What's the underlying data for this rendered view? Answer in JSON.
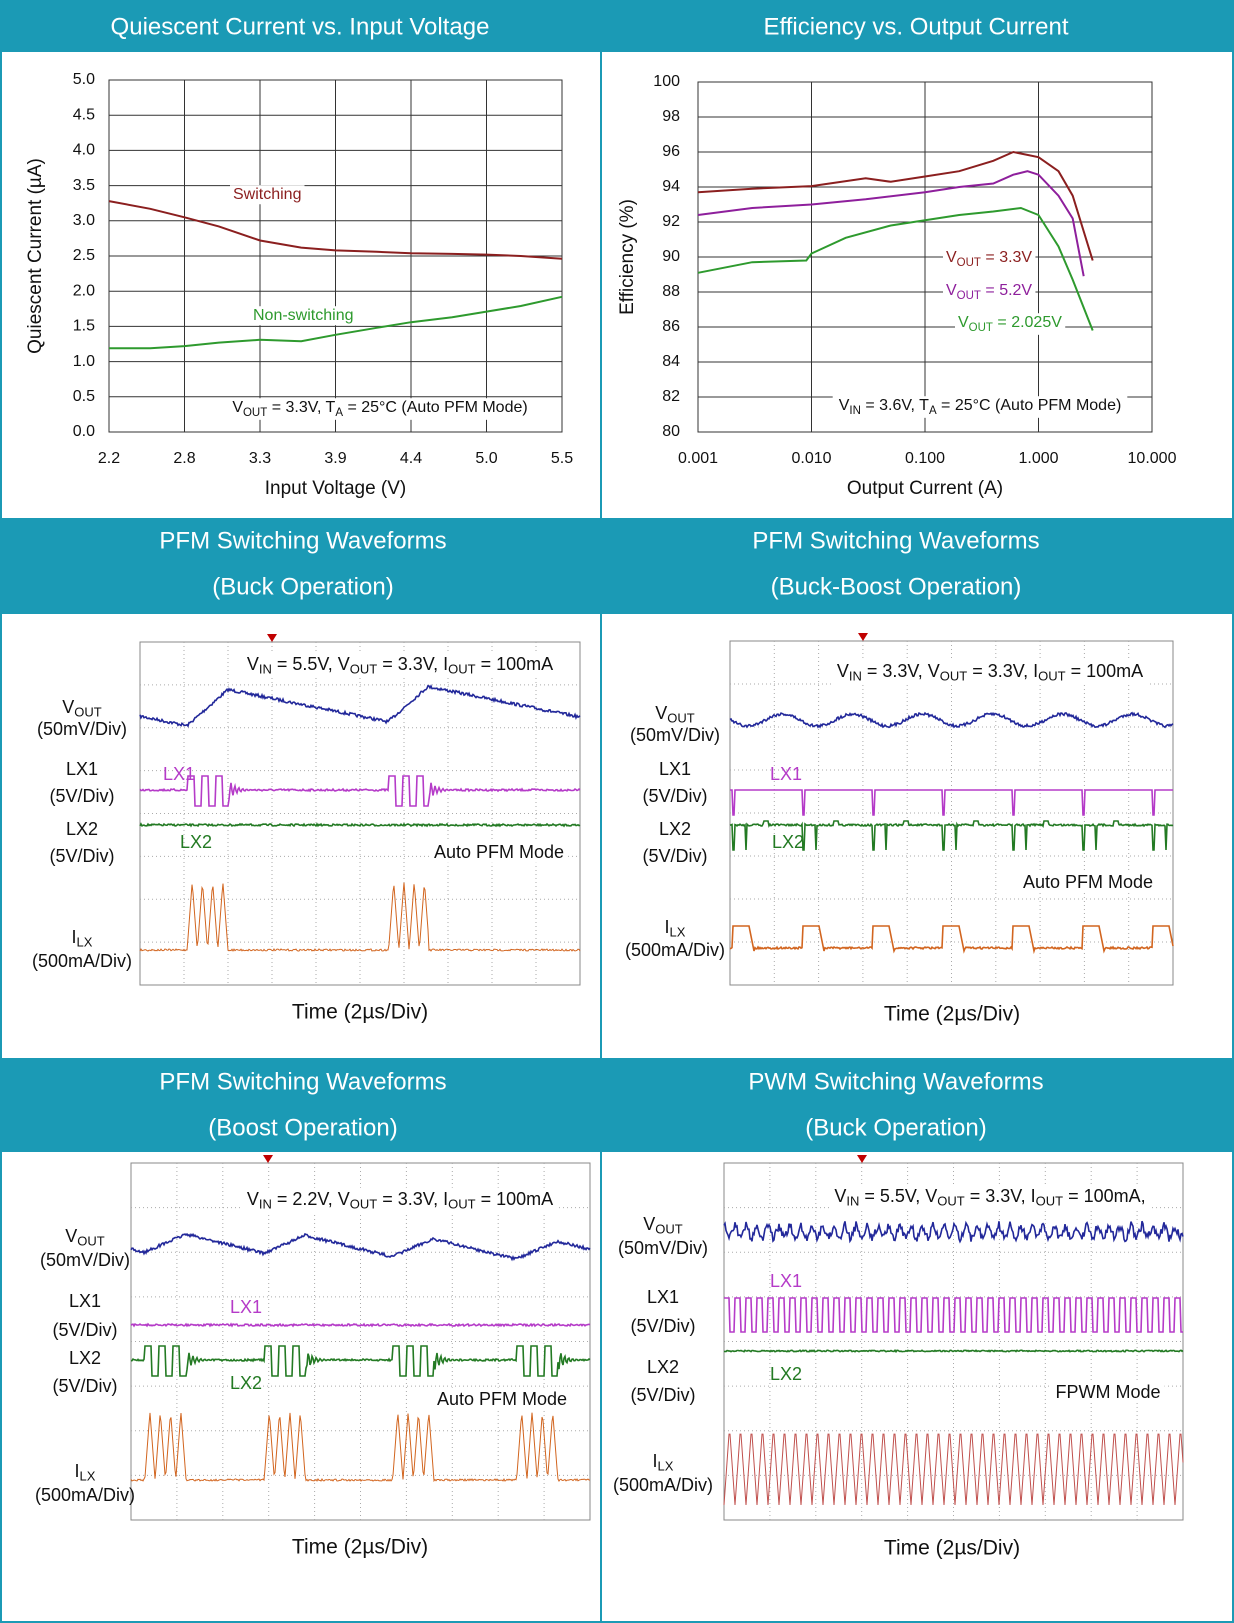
{
  "chart_data": [
    {
      "type": "line",
      "title": "Quiescent Current vs. Input Voltage",
      "x_label": "Input Voltage (V)",
      "y_label": "Quiescent Current (µA)",
      "x": [
        2.2,
        2.5,
        2.75,
        3.0,
        3.3,
        3.6,
        3.85,
        4.15,
        4.4,
        4.7,
        4.95,
        5.2,
        5.5
      ],
      "series": [
        {
          "name": "Switching",
          "color": "#8b1f1f",
          "values": [
            3.28,
            3.17,
            3.05,
            2.92,
            2.72,
            2.62,
            2.58,
            2.56,
            2.54,
            2.53,
            2.52,
            2.5,
            2.46
          ]
        },
        {
          "name": "Non-switching",
          "color": "#2e9a2e",
          "values": [
            1.19,
            1.19,
            1.22,
            1.27,
            1.31,
            1.29,
            1.38,
            1.48,
            1.56,
            1.63,
            1.71,
            1.79,
            1.92
          ]
        }
      ],
      "xlim": [
        2.2,
        5.5
      ],
      "xticks": [
        2.2,
        {
          "value": 2.75,
          "label": "2.8"
        },
        3.3,
        {
          "value": 3.85,
          "label": "3.9"
        },
        4.4,
        {
          "value": 4.95,
          "label": "5.0"
        },
        5.5
      ],
      "ylim": [
        0,
        5
      ],
      "yticks": [
        {
          "value": 0,
          "label": "0.0"
        },
        0.5,
        {
          "value": 1,
          "label": "1.0"
        },
        1.5,
        {
          "value": 2,
          "label": "2.0"
        },
        2.5,
        {
          "value": 3,
          "label": "3.0"
        },
        3.5,
        {
          "value": 4,
          "label": "4.0"
        },
        4.5,
        {
          "value": 5,
          "label": "5.0"
        }
      ],
      "grid": true,
      "annotation": [
        "V",
        "OUT",
        " = 3.3V, T",
        "A",
        " = 25°C (Auto PFM Mode)"
      ]
    },
    {
      "type": "line",
      "title": "Efficiency vs. Output Current",
      "x_label": "Output Current (A)",
      "y_label": "Efficiency (%)",
      "x_scale": "log",
      "series": [
        {
          "name": [
            "V",
            "OUT",
            " = 3.3V"
          ],
          "color": "#8b1f1f",
          "x": [
            0.001,
            0.003,
            0.01,
            0.03,
            0.05,
            0.1,
            0.2,
            0.4,
            0.6,
            1,
            1.5,
            2,
            3
          ],
          "values": [
            93.7,
            93.9,
            94.05,
            94.5,
            94.3,
            94.6,
            94.9,
            95.5,
            96.0,
            95.7,
            94.9,
            93.5,
            89.8
          ]
        },
        {
          "name": [
            "V",
            "OUT",
            " = 5.2V"
          ],
          "color": "#8e1f9c",
          "x": [
            0.001,
            0.003,
            0.01,
            0.03,
            0.1,
            0.2,
            0.4,
            0.6,
            0.8,
            1,
            1.5,
            2,
            2.5
          ],
          "values": [
            92.4,
            92.8,
            93.0,
            93.3,
            93.7,
            94.0,
            94.2,
            94.7,
            94.9,
            94.7,
            93.5,
            92.2,
            88.9
          ]
        },
        {
          "name": [
            "V",
            "OUT",
            " = 2.025V"
          ],
          "color": "#2e9a2e",
          "x": [
            0.001,
            0.003,
            0.009,
            0.01,
            0.02,
            0.05,
            0.1,
            0.2,
            0.4,
            0.7,
            1,
            1.5,
            2,
            3
          ],
          "values": [
            89.1,
            89.7,
            89.8,
            90.2,
            91.1,
            91.8,
            92.1,
            92.4,
            92.6,
            92.8,
            92.4,
            90.6,
            88.7,
            85.8
          ]
        }
      ],
      "xlim": [
        0.001,
        10
      ],
      "xticks": [
        0.001,
        {
          "value": 0.01,
          "label": "0.010"
        },
        {
          "value": 0.1,
          "label": "0.100"
        },
        {
          "value": 1,
          "label": "1.000"
        },
        {
          "value": 10,
          "label": "10.000"
        }
      ],
      "ylim": [
        80,
        100
      ],
      "yticks": [
        80,
        82,
        84,
        86,
        88,
        90,
        92,
        94,
        96,
        98,
        100
      ],
      "grid": true,
      "annotation": [
        "V",
        "IN",
        " = 3.6V, T",
        "A",
        " = 25°C (Auto PFM Mode)"
      ]
    },
    {
      "type": "waveform",
      "title": [
        "PFM Switching Waveforms",
        "(Buck Operation)"
      ],
      "conditions": [
        "V",
        "IN",
        " = 5.5V, V",
        "OUT",
        " = 3.3V, I",
        "OUT",
        " = 100mA"
      ],
      "mode": "Auto PFM Mode",
      "x_label": "Time (2µs/Div)",
      "channels": [
        {
          "label": [
            "V",
            "OUT"
          ],
          "scale": "(50mV/Div)",
          "color": "#22289a"
        },
        {
          "label": [
            "LX1"
          ],
          "scale": "(5V/Div)",
          "color": "#b53bc8",
          "tag": "LX1"
        },
        {
          "label": [
            "LX2"
          ],
          "scale": "(5V/Div)",
          "color": "#237a23",
          "tag": "LX2"
        },
        {
          "label": [
            "I",
            "LX"
          ],
          "scale": "(500mA/Div)",
          "color": "#d2651f"
        }
      ]
    },
    {
      "type": "waveform",
      "title": [
        "PFM Switching Waveforms",
        "(Buck-Boost Operation)"
      ],
      "conditions": [
        "V",
        "IN",
        " = 3.3V, V",
        "OUT",
        " = 3.3V, I",
        "OUT",
        " = 100mA"
      ],
      "mode": "Auto PFM Mode",
      "x_label": "Time (2µs/Div)",
      "channels": [
        {
          "label": [
            "V",
            "OUT"
          ],
          "scale": "(50mV/Div)",
          "color": "#22289a"
        },
        {
          "label": [
            "LX1"
          ],
          "scale": "(5V/Div)",
          "color": "#b53bc8",
          "tag": "LX1"
        },
        {
          "label": [
            "LX2"
          ],
          "scale": "(5V/Div)",
          "color": "#237a23",
          "tag": "LX2"
        },
        {
          "label": [
            "I",
            "LX"
          ],
          "scale": "(500mA/Div)",
          "color": "#d2651f"
        }
      ]
    },
    {
      "type": "waveform",
      "title": [
        "PFM Switching Waveforms",
        "(Boost Operation)"
      ],
      "conditions": [
        "V",
        "IN",
        " = 2.2V, V",
        "OUT",
        " = 3.3V, I",
        "OUT",
        " = 100mA"
      ],
      "mode": "Auto PFM Mode",
      "x_label": "Time (2µs/Div)",
      "channels": [
        {
          "label": [
            "V",
            "OUT"
          ],
          "scale": "(50mV/Div)",
          "color": "#22289a"
        },
        {
          "label": [
            "LX1"
          ],
          "scale": "(5V/Div)",
          "color": "#b53bc8",
          "tag": "LX1"
        },
        {
          "label": [
            "LX2"
          ],
          "scale": "(5V/Div)",
          "color": "#237a23",
          "tag": "LX2"
        },
        {
          "label": [
            "I",
            "LX"
          ],
          "scale": "(500mA/Div)",
          "color": "#d2651f"
        }
      ]
    },
    {
      "type": "waveform",
      "title": [
        "PWM Switching Waveforms",
        "(Buck Operation)"
      ],
      "conditions": [
        "V",
        "IN",
        " = 5.5V, V",
        "OUT",
        " = 3.3V, I",
        "OUT",
        " = 100mA,"
      ],
      "mode": "FPWM Mode",
      "x_label": "Time (2µs/Div)",
      "channels": [
        {
          "label": [
            "V",
            "OUT"
          ],
          "scale": "(50mV/Div)",
          "color": "#22289a"
        },
        {
          "label": [
            "LX1"
          ],
          "scale": "(5V/Div)",
          "color": "#b53bc8",
          "tag": "LX1"
        },
        {
          "label": [
            "LX2"
          ],
          "scale": "(5V/Div)",
          "color": "#237a23",
          "tag": "LX2"
        },
        {
          "label": [
            "I",
            "LX"
          ],
          "scale": "(500mA/Div)",
          "color": "#c0504d"
        }
      ]
    }
  ]
}
